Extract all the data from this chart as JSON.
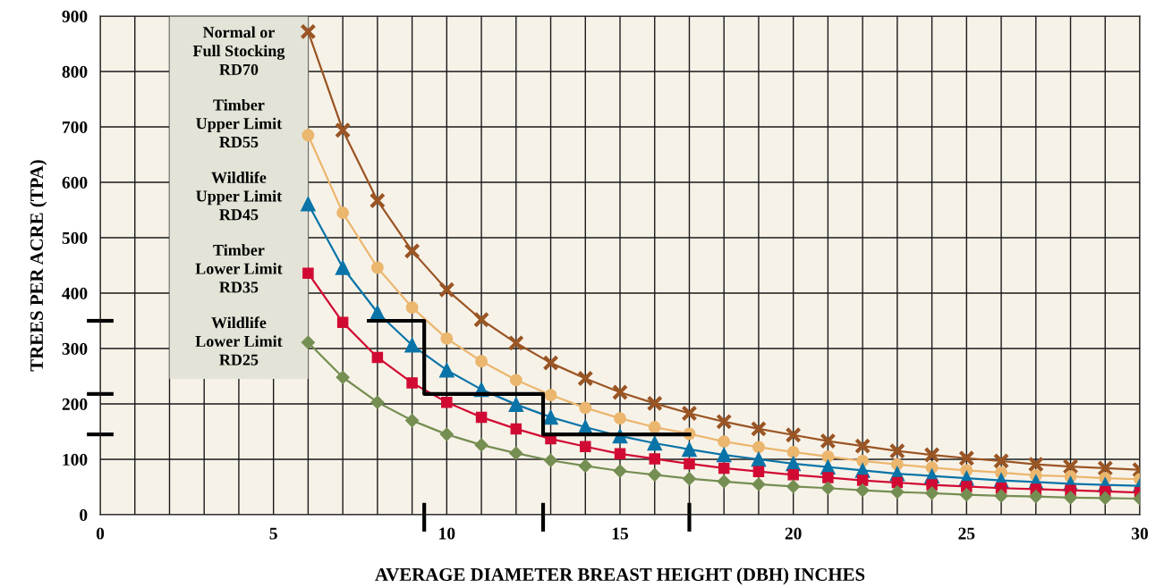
{
  "chart_data": {
    "type": "line",
    "xlabel": "AVERAGE DIAMETER BREAST HEIGHT (DBH) INCHES",
    "ylabel": "TREES PER ACRE (TPA)",
    "x": [
      6,
      7,
      8,
      9,
      10,
      11,
      12,
      13,
      14,
      15,
      16,
      17,
      18,
      19,
      20,
      21,
      22,
      23,
      24,
      25,
      26,
      27,
      28,
      29,
      30
    ],
    "series": [
      {
        "name": "Normal or\nFull Stocking\nRD70",
        "color": "#9a5524",
        "marker": "cross",
        "values": [
          872,
          694,
          567,
          476,
          406,
          352,
          310,
          274,
          246,
          221,
          201,
          183,
          168,
          155,
          144,
          133,
          124,
          115,
          108,
          102,
          97,
          91,
          87,
          84,
          81
        ]
      },
      {
        "name": "Timber\nUpper Limit\nRD55",
        "color": "#ebb66e",
        "marker": "circle",
        "values": [
          685,
          545,
          446,
          374,
          318,
          277,
          243,
          216,
          193,
          174,
          158,
          146,
          132,
          122,
          113,
          105,
          97,
          91,
          85,
          80,
          76,
          71,
          69,
          66,
          64
        ]
      },
      {
        "name": "Wildlife\nUpper Limit\nRD45",
        "color": "#0a74a8",
        "marker": "triangle",
        "values": [
          561,
          446,
          365,
          306,
          261,
          226,
          199,
          176,
          158,
          142,
          129,
          118,
          108,
          100,
          92,
          86,
          80,
          74,
          70,
          66,
          62,
          59,
          56,
          54,
          52
        ]
      },
      {
        "name": "Timber\nLower Limit\nRD35",
        "color": "#d10a33",
        "marker": "square",
        "values": [
          436,
          347,
          284,
          238,
          203,
          176,
          155,
          137,
          123,
          110,
          101,
          92,
          84,
          78,
          72,
          67,
          62,
          58,
          54,
          51,
          48,
          46,
          44,
          42,
          40
        ]
      },
      {
        "name": "Wildlife\nLower Limit\nRD25",
        "color": "#758e52",
        "marker": "diamond",
        "values": [
          311,
          248,
          203,
          170,
          145,
          126,
          111,
          98,
          88,
          79,
          72,
          65,
          60,
          55,
          51,
          48,
          44,
          41,
          39,
          36,
          34,
          33,
          31,
          30,
          29
        ]
      },
      {
        "type": "step",
        "color": "#000000",
        "marker": "none",
        "x": [
          7.75,
          9.35,
          12.78,
          17
        ],
        "values": [
          350,
          218,
          145,
          145
        ]
      }
    ],
    "xlim": [
      0,
      30
    ],
    "xticks": [
      0,
      5,
      10,
      15,
      20,
      25,
      30
    ],
    "ylim": [
      0,
      900
    ],
    "yticks": [
      0,
      100,
      200,
      300,
      400,
      500,
      600,
      700,
      800,
      900
    ],
    "grid": true,
    "legend": false,
    "line_style": "solid"
  }
}
